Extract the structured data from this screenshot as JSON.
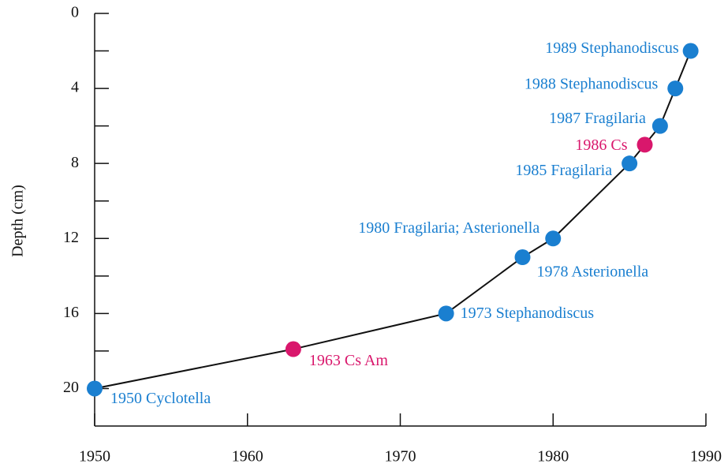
{
  "chart_data": {
    "type": "line",
    "y_label": "Depth (cm)",
    "xlim": [
      1950,
      1990
    ],
    "xticks": [
      1950,
      1960,
      1970,
      1980,
      1990
    ],
    "ylim": [
      0,
      22
    ],
    "y_inverted": true,
    "yticks": [
      0,
      4,
      8,
      12,
      16,
      20
    ],
    "minor_yticks": [
      2,
      6,
      10,
      14,
      18
    ],
    "line_color": "#111111",
    "series": [
      {
        "x": [
          1950,
          1963,
          1973,
          1978,
          1980,
          1985,
          1986,
          1987,
          1988,
          1989
        ],
        "values": [
          20,
          17.9,
          16,
          13,
          12,
          8,
          7,
          6,
          4,
          2
        ],
        "point_colors": [
          "#1a7fd0",
          "#d9176c",
          "#1a7fd0",
          "#1a7fd0",
          "#1a7fd0",
          "#1a7fd0",
          "#d9176c",
          "#1a7fd0",
          "#1a7fd0",
          "#1a7fd0"
        ],
        "point_labels": [
          "1950 Cyclotella",
          "1963 Cs Am",
          "1973 Stephanodiscus",
          "1978 Asterionella",
          "1980 Fragilaria; Asterionella",
          "1985 Fragilaria",
          "1986 Cs",
          "1987 Fragilaria",
          "1988 Stephanodiscus",
          "1989 Stephanodiscus"
        ]
      }
    ]
  }
}
